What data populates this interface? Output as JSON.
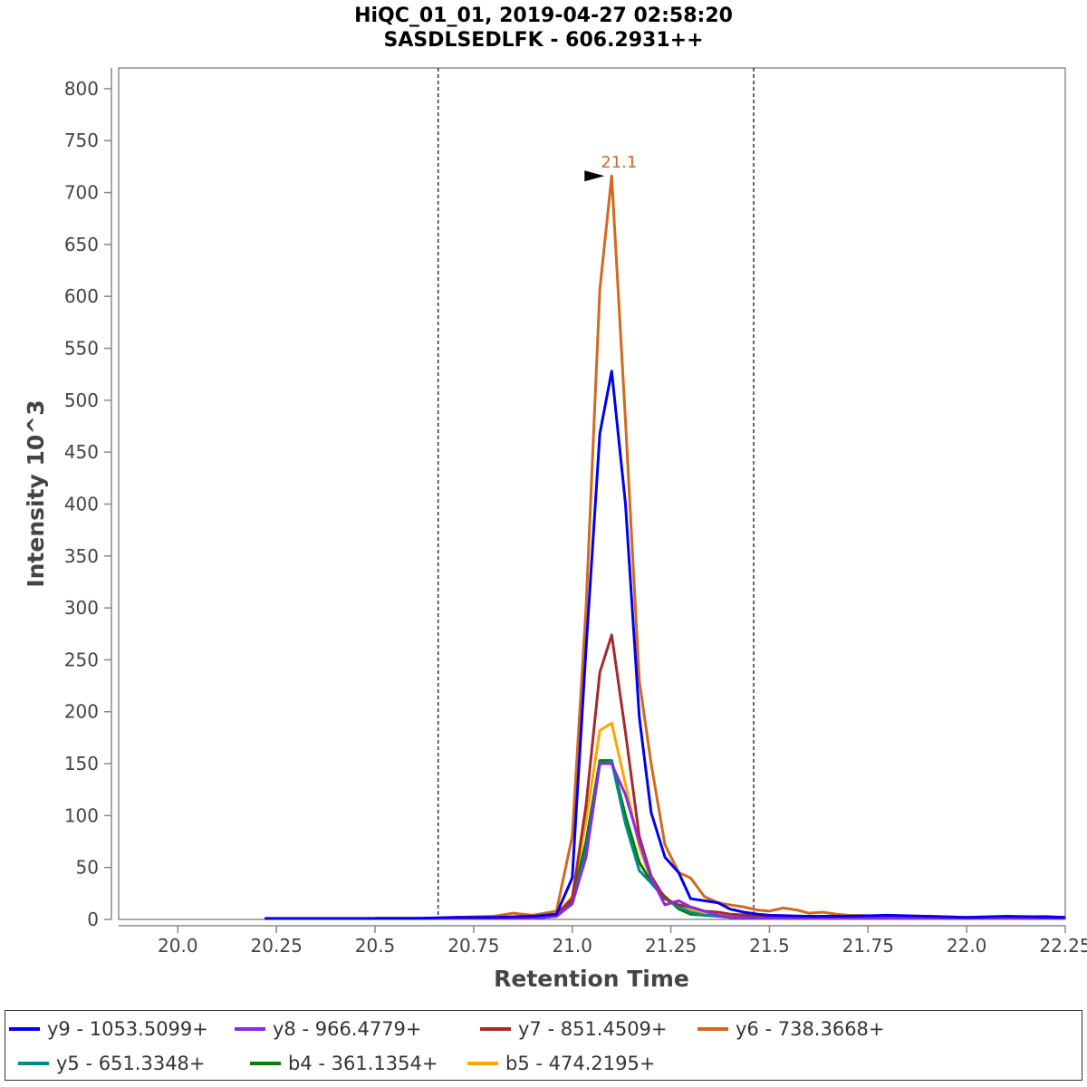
{
  "chart_data": {
    "type": "line",
    "title": "HiQC_01_01, 2019-04-27 02:58:20",
    "subtitle": "SASDLSEDLFK - 606.2931++",
    "xlabel": "Retention Time",
    "ylabel": "Intensity 10^3",
    "xlim": [
      19.85,
      22.25
    ],
    "ylim": [
      0,
      820
    ],
    "x_ticks": [
      "20.0",
      "20.25",
      "20.5",
      "20.75",
      "21.0",
      "21.25",
      "21.5",
      "21.75",
      "22.0",
      "22.25"
    ],
    "y_ticks": [
      "0",
      "50",
      "100",
      "150",
      "200",
      "250",
      "300",
      "350",
      "400",
      "450",
      "500",
      "550",
      "600",
      "650",
      "700",
      "750",
      "800"
    ],
    "boundaries": [
      20.66,
      21.46
    ],
    "annotation": {
      "x": 21.1,
      "y": 716,
      "text": "21.1",
      "color": "#d2691e"
    },
    "legend_position": "bottom",
    "series": [
      {
        "name": "y9 - 1053.5099+",
        "color": "#0000ee",
        "points": [
          [
            20.22,
            1
          ],
          [
            20.3,
            1
          ],
          [
            20.4,
            1
          ],
          [
            20.5,
            1
          ],
          [
            20.6,
            1
          ],
          [
            20.7,
            2
          ],
          [
            20.8,
            2
          ],
          [
            20.9,
            3
          ],
          [
            20.96,
            5
          ],
          [
            21.0,
            40
          ],
          [
            21.035,
            260
          ],
          [
            21.07,
            468
          ],
          [
            21.1,
            528
          ],
          [
            21.135,
            400
          ],
          [
            21.17,
            195
          ],
          [
            21.2,
            103
          ],
          [
            21.235,
            60
          ],
          [
            21.27,
            45
          ],
          [
            21.3,
            20
          ],
          [
            21.335,
            18
          ],
          [
            21.37,
            16
          ],
          [
            21.4,
            10
          ],
          [
            21.435,
            7
          ],
          [
            21.47,
            5
          ],
          [
            21.5,
            4
          ],
          [
            21.6,
            3
          ],
          [
            21.7,
            3
          ],
          [
            21.8,
            4
          ],
          [
            21.9,
            3
          ],
          [
            22.0,
            2
          ],
          [
            22.1,
            3
          ],
          [
            22.25,
            2
          ]
        ]
      },
      {
        "name": "y8 - 966.4779+",
        "color": "#8a2be2",
        "points": [
          [
            20.5,
            1
          ],
          [
            20.7,
            1
          ],
          [
            20.9,
            1
          ],
          [
            20.96,
            3
          ],
          [
            21.0,
            15
          ],
          [
            21.035,
            60
          ],
          [
            21.07,
            150
          ],
          [
            21.1,
            150
          ],
          [
            21.135,
            120
          ],
          [
            21.17,
            75
          ],
          [
            21.2,
            40
          ],
          [
            21.235,
            14
          ],
          [
            21.27,
            18
          ],
          [
            21.3,
            12
          ],
          [
            21.335,
            8
          ],
          [
            21.37,
            4
          ],
          [
            21.4,
            2
          ],
          [
            21.5,
            1
          ],
          [
            21.7,
            1
          ],
          [
            22.0,
            1
          ],
          [
            22.25,
            1
          ]
        ]
      },
      {
        "name": "y7 - 851.4509+",
        "color": "#a52a2a",
        "points": [
          [
            20.5,
            1
          ],
          [
            20.7,
            1
          ],
          [
            20.9,
            1
          ],
          [
            20.96,
            5
          ],
          [
            21.0,
            20
          ],
          [
            21.035,
            110
          ],
          [
            21.07,
            238
          ],
          [
            21.1,
            274
          ],
          [
            21.135,
            180
          ],
          [
            21.17,
            80
          ],
          [
            21.2,
            42
          ],
          [
            21.235,
            20
          ],
          [
            21.27,
            14
          ],
          [
            21.3,
            12
          ],
          [
            21.335,
            8
          ],
          [
            21.37,
            7
          ],
          [
            21.4,
            5
          ],
          [
            21.5,
            3
          ],
          [
            21.7,
            2
          ],
          [
            22.0,
            1
          ],
          [
            22.25,
            1
          ]
        ]
      },
      {
        "name": "y6 - 738.3668+",
        "color": "#d2691e",
        "points": [
          [
            20.7,
            2
          ],
          [
            20.8,
            3
          ],
          [
            20.85,
            6
          ],
          [
            20.9,
            4
          ],
          [
            20.96,
            8
          ],
          [
            21.0,
            80
          ],
          [
            21.035,
            300
          ],
          [
            21.07,
            607
          ],
          [
            21.1,
            716
          ],
          [
            21.135,
            480
          ],
          [
            21.17,
            230
          ],
          [
            21.2,
            150
          ],
          [
            21.235,
            72
          ],
          [
            21.27,
            45
          ],
          [
            21.3,
            40
          ],
          [
            21.335,
            22
          ],
          [
            21.37,
            16
          ],
          [
            21.4,
            14
          ],
          [
            21.435,
            12
          ],
          [
            21.47,
            9
          ],
          [
            21.5,
            8
          ],
          [
            21.535,
            11
          ],
          [
            21.57,
            9
          ],
          [
            21.6,
            6
          ],
          [
            21.635,
            7
          ],
          [
            21.67,
            5
          ],
          [
            21.7,
            4
          ],
          [
            21.8,
            3
          ],
          [
            21.9,
            3
          ],
          [
            22.0,
            2
          ],
          [
            22.1,
            2
          ],
          [
            22.2,
            3
          ],
          [
            22.25,
            2
          ]
        ]
      },
      {
        "name": "y5 - 651.3348+",
        "color": "#008b8b",
        "points": [
          [
            20.5,
            1
          ],
          [
            20.7,
            1
          ],
          [
            20.9,
            1
          ],
          [
            20.96,
            3
          ],
          [
            21.0,
            15
          ],
          [
            21.035,
            65
          ],
          [
            21.07,
            150
          ],
          [
            21.1,
            152
          ],
          [
            21.135,
            92
          ],
          [
            21.17,
            47
          ],
          [
            21.2,
            35
          ],
          [
            21.235,
            20
          ],
          [
            21.27,
            12
          ],
          [
            21.3,
            7
          ],
          [
            21.335,
            4
          ],
          [
            21.37,
            3
          ],
          [
            21.4,
            2
          ],
          [
            21.5,
            1
          ],
          [
            21.7,
            1
          ],
          [
            22.0,
            1
          ],
          [
            22.25,
            1
          ]
        ]
      },
      {
        "name": "b4 - 361.1354+",
        "color": "#008000",
        "points": [
          [
            20.5,
            1
          ],
          [
            20.7,
            1
          ],
          [
            20.9,
            1
          ],
          [
            20.96,
            3
          ],
          [
            21.0,
            18
          ],
          [
            21.035,
            75
          ],
          [
            21.07,
            153
          ],
          [
            21.1,
            153
          ],
          [
            21.135,
            100
          ],
          [
            21.17,
            55
          ],
          [
            21.2,
            36
          ],
          [
            21.235,
            22
          ],
          [
            21.27,
            10
          ],
          [
            21.3,
            5
          ],
          [
            21.335,
            4
          ],
          [
            21.37,
            3
          ],
          [
            21.4,
            2
          ],
          [
            21.5,
            1
          ],
          [
            21.7,
            1
          ],
          [
            22.0,
            1
          ],
          [
            22.25,
            1
          ]
        ]
      },
      {
        "name": "b5 - 474.2195+",
        "color": "#ffa500",
        "points": [
          [
            20.5,
            1
          ],
          [
            20.7,
            1
          ],
          [
            20.9,
            1
          ],
          [
            20.96,
            4
          ],
          [
            21.0,
            22
          ],
          [
            21.035,
            95
          ],
          [
            21.07,
            182
          ],
          [
            21.1,
            189
          ],
          [
            21.135,
            130
          ],
          [
            21.17,
            70
          ],
          [
            21.2,
            38
          ],
          [
            21.235,
            20
          ],
          [
            21.27,
            14
          ],
          [
            21.3,
            10
          ],
          [
            21.335,
            6
          ],
          [
            21.37,
            4
          ],
          [
            21.4,
            3
          ],
          [
            21.5,
            2
          ],
          [
            21.7,
            1
          ],
          [
            22.0,
            1
          ],
          [
            22.25,
            1
          ]
        ]
      }
    ]
  }
}
